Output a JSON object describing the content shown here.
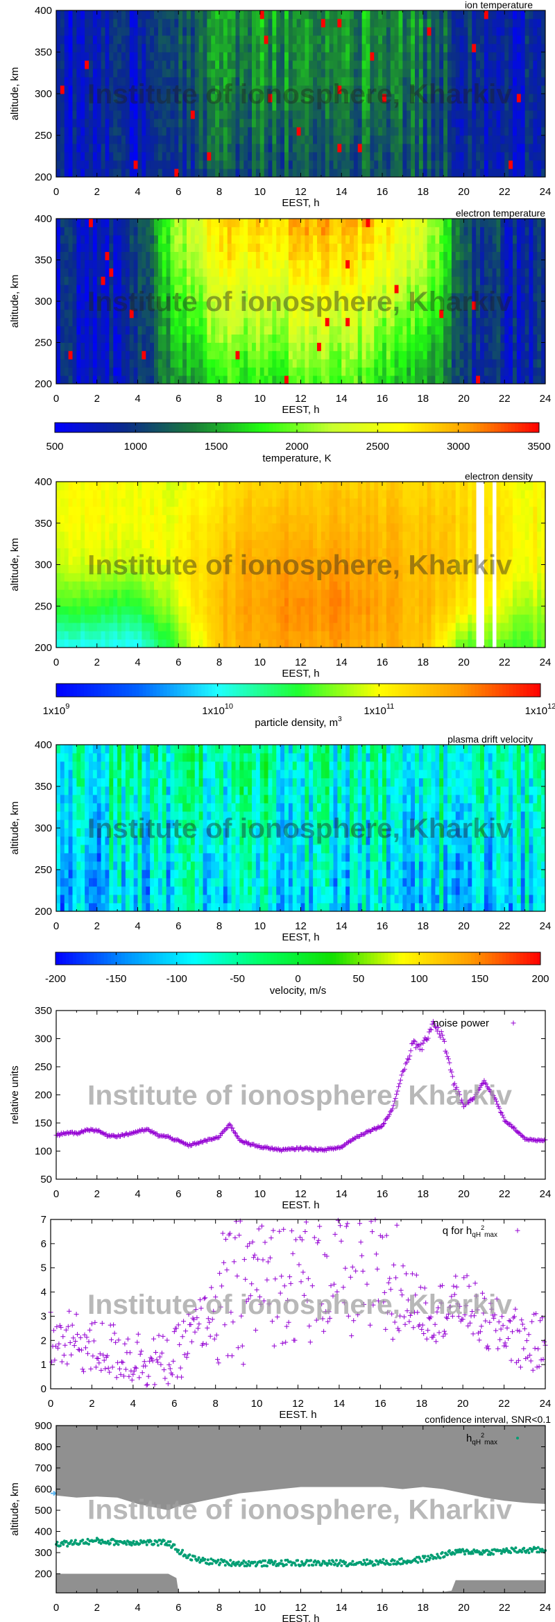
{
  "watermark": "Institute of ionosphere, Kharkiv",
  "palettes": {
    "temperature": [
      "#0000ff",
      "#0a2a8c",
      "#1a7a3a",
      "#22ff10",
      "#c8ff30",
      "#ffff00",
      "#ff9a00",
      "#ff0000"
    ],
    "density": [
      "#0000ff",
      "#0060ff",
      "#20ffff",
      "#20ff30",
      "#ffff00",
      "#ff9a00",
      "#ff0000"
    ],
    "velocity": [
      "#0000ff",
      "#0090ff",
      "#00ffff",
      "#00ff60",
      "#10e000",
      "#ffff00",
      "#ff9a00",
      "#ff0000"
    ]
  },
  "chart_data": [
    {
      "type": "heatmap",
      "title": "ion temperature",
      "xlabel": "EEST, h",
      "ylabel": "altitude, km",
      "xlim": [
        0,
        24
      ],
      "ylim": [
        200,
        400
      ],
      "xticks": [
        0,
        2,
        4,
        6,
        8,
        10,
        12,
        14,
        16,
        18,
        20,
        22,
        24
      ],
      "yticks": [
        200,
        250,
        300,
        350,
        400
      ],
      "colormap": "temperature",
      "crange": [
        500,
        3500
      ],
      "hours": [
        0,
        2,
        4,
        6,
        8,
        10,
        12,
        14,
        16,
        18,
        20,
        22,
        24
      ],
      "altitudes": [
        200,
        250,
        300,
        350,
        400
      ],
      "values": [
        [
          800,
          800,
          800,
          900,
          1100,
          1100,
          1150,
          1150,
          1150,
          1100,
          950,
          850,
          850
        ],
        [
          800,
          800,
          800,
          1000,
          1200,
          1200,
          1250,
          1250,
          1200,
          1150,
          950,
          850,
          850
        ],
        [
          800,
          800,
          800,
          1050,
          1300,
          1350,
          1400,
          1400,
          1350,
          1200,
          950,
          850,
          850
        ],
        [
          800,
          800,
          850,
          1100,
          1350,
          1400,
          1450,
          1450,
          1400,
          1250,
          1000,
          850,
          850
        ],
        [
          800,
          800,
          850,
          1100,
          1400,
          1450,
          1450,
          1450,
          1450,
          1300,
          1000,
          850,
          850
        ]
      ]
    },
    {
      "type": "heatmap",
      "title": "electron temperature",
      "xlabel": "EEST, h",
      "ylabel": "altitude, km",
      "xlim": [
        0,
        24
      ],
      "ylim": [
        200,
        400
      ],
      "xticks": [
        0,
        2,
        4,
        6,
        8,
        10,
        12,
        14,
        16,
        18,
        20,
        22,
        24
      ],
      "yticks": [
        200,
        250,
        300,
        350,
        400
      ],
      "colormap": "temperature",
      "crange": [
        500,
        3500
      ],
      "hours": [
        0,
        2,
        4,
        6,
        8,
        10,
        12,
        14,
        16,
        18,
        20,
        22,
        24
      ],
      "altitudes": [
        200,
        250,
        300,
        350,
        400
      ],
      "values": [
        [
          800,
          800,
          850,
          1500,
          1700,
          1800,
          1800,
          1800,
          1750,
          1600,
          1000,
          850,
          850
        ],
        [
          800,
          800,
          850,
          1700,
          2000,
          2100,
          2100,
          2100,
          2000,
          1800,
          1050,
          900,
          850
        ],
        [
          800,
          800,
          900,
          1900,
          2300,
          2400,
          2400,
          2400,
          2300,
          2100,
          1100,
          900,
          850
        ],
        [
          800,
          800,
          900,
          2100,
          2600,
          2700,
          2700,
          2700,
          2600,
          2300,
          1150,
          900,
          850
        ],
        [
          800,
          800,
          950,
          2200,
          2800,
          2900,
          2900,
          2900,
          2800,
          2400,
          1200,
          950,
          850
        ]
      ]
    },
    {
      "type": "heatmap",
      "title": "electron density",
      "xlabel": "EEST, h",
      "ylabel": "altitude, km",
      "xlim": [
        0,
        24
      ],
      "ylim": [
        200,
        400
      ],
      "xticks": [
        0,
        2,
        4,
        6,
        8,
        10,
        12,
        14,
        16,
        18,
        20,
        22,
        24
      ],
      "yticks": [
        200,
        250,
        300,
        350,
        400
      ],
      "colormap": "density",
      "log10_crange": [
        9,
        12
      ],
      "hours": [
        0,
        2,
        4,
        6,
        8,
        10,
        12,
        14,
        16,
        18,
        20,
        22,
        24
      ],
      "altitudes": [
        200,
        250,
        300,
        350,
        400
      ],
      "log10_values": [
        [
          10.0,
          10.0,
          10.0,
          10.6,
          11.3,
          11.4,
          11.45,
          11.45,
          11.4,
          11.3,
          10.6,
          10.6,
          10.6
        ],
        [
          10.6,
          10.5,
          10.5,
          10.9,
          11.35,
          11.45,
          11.55,
          11.55,
          11.45,
          11.35,
          11.1,
          10.9,
          10.8
        ],
        [
          10.9,
          10.9,
          10.9,
          11.0,
          11.3,
          11.4,
          11.45,
          11.45,
          11.4,
          11.35,
          11.2,
          11.1,
          11.0
        ],
        [
          11.0,
          11.0,
          11.0,
          11.0,
          11.2,
          11.3,
          11.35,
          11.35,
          11.35,
          11.3,
          11.2,
          11.1,
          11.0
        ],
        [
          11.0,
          11.0,
          11.0,
          10.9,
          11.1,
          11.2,
          11.25,
          11.25,
          11.25,
          11.2,
          11.15,
          11.05,
          11.0
        ]
      ],
      "gaps": [
        [
          20.7,
          20.95
        ],
        [
          21.35,
          21.6
        ]
      ]
    },
    {
      "type": "heatmap",
      "title": "plasma drift velocity",
      "xlabel": "EEST, h",
      "ylabel": "altitude, km",
      "xlim": [
        0,
        24
      ],
      "ylim": [
        200,
        400
      ],
      "xticks": [
        0,
        2,
        4,
        6,
        8,
        10,
        12,
        14,
        16,
        18,
        20,
        22,
        24
      ],
      "yticks": [
        200,
        250,
        300,
        350,
        400
      ],
      "colormap": "velocity",
      "crange": [
        -200,
        200
      ],
      "hours": [
        0,
        2,
        4,
        6,
        8,
        10,
        12,
        14,
        16,
        18,
        20,
        22,
        24
      ],
      "altitudes": [
        200,
        250,
        300,
        350,
        400
      ],
      "values": [
        [
          -120,
          -120,
          -115,
          -95,
          -90,
          -90,
          -90,
          -95,
          -90,
          -95,
          -120,
          -110,
          -100
        ],
        [
          -110,
          -110,
          -105,
          -85,
          -80,
          -80,
          -80,
          -85,
          -80,
          -85,
          -110,
          -100,
          -95
        ],
        [
          -90,
          -90,
          -90,
          -75,
          -70,
          -70,
          -70,
          -75,
          -70,
          -75,
          -90,
          -85,
          -80
        ],
        [
          -75,
          -75,
          -70,
          -60,
          -55,
          -60,
          -60,
          -60,
          -60,
          -65,
          -75,
          -70,
          -70
        ],
        [
          -65,
          -65,
          -60,
          -50,
          -45,
          -50,
          -50,
          -50,
          -50,
          -55,
          -65,
          -60,
          -60
        ]
      ]
    },
    {
      "type": "scatter",
      "xlabel": "EEST. h",
      "ylabel": "relative units",
      "xlim": [
        0,
        24
      ],
      "ylim": [
        50,
        350
      ],
      "xticks": [
        0,
        2,
        4,
        6,
        8,
        10,
        12,
        14,
        16,
        18,
        20,
        22,
        24
      ],
      "yticks": [
        50,
        100,
        150,
        200,
        250,
        300,
        350
      ],
      "series": [
        {
          "name": "noise power",
          "color": "#9400d3",
          "marker": "+",
          "x": [
            0,
            0.5,
            1,
            1.5,
            2,
            2.5,
            3,
            3.5,
            4,
            4.5,
            5,
            5.5,
            6,
            6.5,
            7,
            7.5,
            8,
            8.5,
            9,
            9.5,
            10,
            10.5,
            11,
            11.5,
            12,
            12.5,
            13,
            13.5,
            14,
            14.5,
            15,
            15.5,
            16,
            16.5,
            17,
            17.5,
            18,
            18.5,
            19,
            19.5,
            20,
            20.5,
            21,
            21.5,
            22,
            22.5,
            23,
            23.5,
            24
          ],
          "y": [
            128,
            133,
            131,
            138,
            137,
            128,
            127,
            130,
            135,
            138,
            128,
            125,
            118,
            110,
            115,
            120,
            125,
            148,
            120,
            112,
            108,
            105,
            102,
            103,
            105,
            104,
            102,
            104,
            107,
            120,
            130,
            138,
            145,
            175,
            240,
            290,
            285,
            330,
            300,
            220,
            180,
            195,
            225,
            195,
            155,
            140,
            122,
            118,
            120
          ]
        }
      ]
    },
    {
      "type": "scatter",
      "xlabel": "EEST. h",
      "ylabel": "",
      "xlim": [
        0,
        24
      ],
      "ylim": [
        0,
        7
      ],
      "xticks": [
        0,
        2,
        4,
        6,
        8,
        10,
        12,
        14,
        16,
        18,
        20,
        22,
        24
      ],
      "yticks": [
        0,
        1,
        2,
        3,
        4,
        5,
        6,
        7
      ],
      "series": [
        {
          "name": {
            "main": "q for h",
            "sub1": "qH",
            "sup": "2",
            "sub2": "max"
          },
          "color": "#9400d3",
          "marker": "+",
          "x": [
            0,
            0.5,
            1,
            1.5,
            2,
            2.5,
            3,
            3.5,
            4,
            4.5,
            5,
            5.5,
            6,
            6.5,
            7,
            7.5,
            8,
            8.5,
            9,
            9.5,
            10,
            10.5,
            11,
            11.5,
            12,
            12.5,
            13,
            13.5,
            14,
            14.5,
            15,
            15.5,
            16,
            16.5,
            17,
            17.5,
            18,
            18.5,
            19,
            19.5,
            20,
            20.5,
            21,
            21.5,
            22,
            22.5,
            23,
            23.5,
            24
          ],
          "y": [
            2.0,
            1.9,
            2.0,
            1.9,
            1.6,
            1.7,
            1.55,
            1.5,
            1.3,
            1.3,
            1.2,
            1.0,
            1.2,
            1.9,
            2.3,
            2.9,
            3.2,
            3.5,
            3.9,
            4.2,
            4.6,
            4.8,
            4.9,
            5.0,
            5.0,
            4.8,
            5.2,
            5.1,
            5.2,
            5.2,
            5.0,
            4.9,
            4.7,
            4.3,
            4.0,
            3.7,
            3.3,
            3.1,
            3.3,
            3.4,
            3.6,
            3.3,
            2.7,
            2.5,
            2.5,
            2.2,
            1.9,
            1.9,
            1.8
          ]
        }
      ]
    },
    {
      "type": "scatter",
      "title": "confidence interval, SNR<0.1",
      "xlabel": "EEST, h",
      "ylabel": "altitude, km",
      "xlim": [
        0,
        24
      ],
      "ylim": [
        110,
        900
      ],
      "xticks": [
        0,
        2,
        4,
        6,
        8,
        10,
        12,
        14,
        16,
        18,
        20,
        22,
        24
      ],
      "yticks": [
        200,
        300,
        400,
        500,
        600,
        700,
        800,
        900
      ],
      "band_color": "#909090",
      "confidence_upper": {
        "x": [
          0,
          1,
          2,
          3,
          4,
          5,
          5.5,
          6,
          7,
          8,
          9,
          10,
          11,
          12,
          13,
          14,
          15,
          16,
          17,
          18,
          19,
          20,
          21,
          22,
          23,
          24
        ],
        "y": [
          570,
          560,
          565,
          560,
          530,
          510,
          500,
          520,
          540,
          560,
          580,
          590,
          600,
          610,
          610,
          610,
          610,
          610,
          600,
          610,
          600,
          580,
          560,
          545,
          535,
          530
        ]
      },
      "confidence_lower": {
        "x": [
          0,
          5.5,
          5.9,
          6,
          19,
          19.4,
          19.6,
          24
        ],
        "y": [
          200,
          200,
          180,
          115,
          115,
          120,
          170,
          170
        ]
      },
      "series": [
        {
          "name": {
            "main": "h",
            "sub1": "qH",
            "sup": "2",
            "sub2": "max"
          },
          "color": "#009e73",
          "marker": "dot",
          "x": [
            0,
            0.5,
            1,
            1.5,
            2,
            2.5,
            3,
            3.5,
            4,
            4.5,
            5,
            5.5,
            6,
            6.5,
            7,
            7.5,
            8,
            8.5,
            9,
            9.5,
            10,
            10.5,
            11,
            11.5,
            12,
            12.5,
            13,
            13.5,
            14,
            14.5,
            15,
            15.5,
            16,
            16.5,
            17,
            17.5,
            18,
            18.5,
            19,
            19.5,
            20,
            20.5,
            21,
            21.5,
            22,
            22.5,
            23,
            23.5,
            24
          ],
          "y": [
            345,
            342,
            348,
            352,
            355,
            352,
            350,
            348,
            350,
            348,
            345,
            348,
            310,
            280,
            265,
            258,
            255,
            252,
            250,
            250,
            248,
            250,
            250,
            252,
            250,
            252,
            250,
            250,
            252,
            250,
            255,
            252,
            255,
            255,
            258,
            262,
            270,
            278,
            290,
            300,
            305,
            305,
            302,
            305,
            308,
            310,
            310,
            312,
            310
          ]
        }
      ]
    }
  ],
  "colorbars": [
    {
      "label": "temperature, K",
      "palette": "temperature",
      "ticks": [
        "500",
        "1000",
        "1500",
        "2000",
        "2500",
        "3000",
        "3500"
      ]
    },
    {
      "label": "particle density, m",
      "label_sup": "3",
      "palette": "density",
      "ticks": [
        {
          "base": "1x10",
          "exp": "9"
        },
        {
          "base": "1x10",
          "exp": "10"
        },
        {
          "base": "1x10",
          "exp": "11"
        },
        {
          "base": "1x10",
          "exp": "12"
        }
      ]
    },
    {
      "label": "velocity, m/s",
      "palette": "velocity",
      "ticks": [
        "-200",
        "-150",
        "-100",
        "-50",
        "0",
        "50",
        "100",
        "150",
        "200"
      ]
    }
  ]
}
